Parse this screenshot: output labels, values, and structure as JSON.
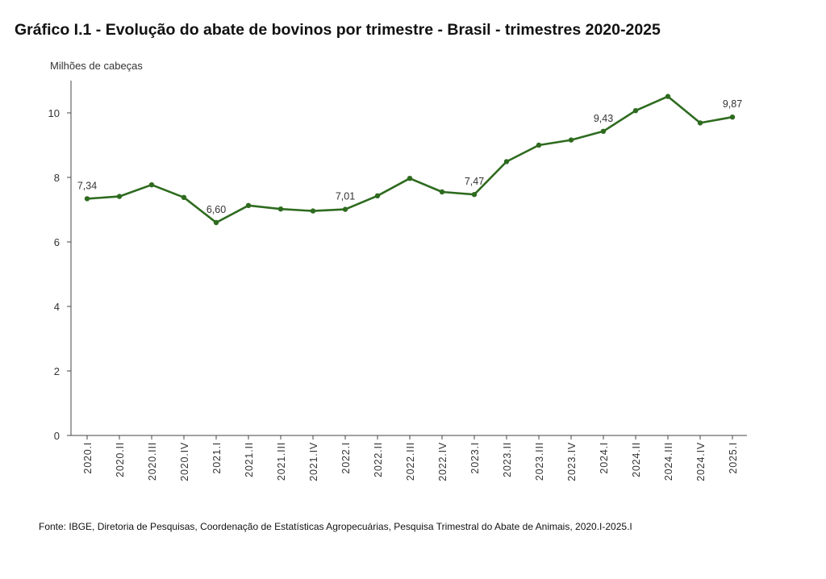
{
  "title": "Gráfico I.1 - Evolução do abate de bovinos por trimestre - Brasil - trimestres 2020-2025",
  "source": "Fonte: IBGE, Diretoria de Pesquisas, Coordenação de Estatísticas Agropecuárias, Pesquisa Trimestral do Abate de Animais, 2020.I-2025.I",
  "chart_data": {
    "type": "line",
    "title": "Gráfico I.1 - Evolução do abate de bovinos por trimestre - Brasil - trimestres 2020-2025",
    "ylabel": "Milhões de cabeças",
    "xlabel": "",
    "ylim": [
      0,
      11
    ],
    "yticks": [
      0,
      2,
      4,
      6,
      8,
      10
    ],
    "grid": false,
    "legend": "none",
    "color": "#2e6b1f",
    "categories": [
      "2020.I",
      "2020.II",
      "2020.III",
      "2020.IV",
      "2021.I",
      "2021.II",
      "2021.III",
      "2021.IV",
      "2022.I",
      "2022.II",
      "2022.III",
      "2022.IV",
      "2023.I",
      "2023.II",
      "2023.III",
      "2023.IV",
      "2024.I",
      "2024.II",
      "2024.III",
      "2024.IV",
      "2025.I"
    ],
    "values": [
      7.34,
      7.41,
      7.77,
      7.38,
      6.6,
      7.13,
      7.02,
      6.96,
      7.01,
      7.43,
      7.97,
      7.55,
      7.47,
      8.49,
      9.0,
      9.16,
      9.43,
      10.07,
      10.51,
      9.69,
      9.87
    ],
    "data_labels": [
      {
        "index": 0,
        "text": "7,34"
      },
      {
        "index": 4,
        "text": "6,60"
      },
      {
        "index": 8,
        "text": "7,01"
      },
      {
        "index": 12,
        "text": "7,47"
      },
      {
        "index": 16,
        "text": "9,43"
      },
      {
        "index": 20,
        "text": "9,87"
      }
    ]
  }
}
